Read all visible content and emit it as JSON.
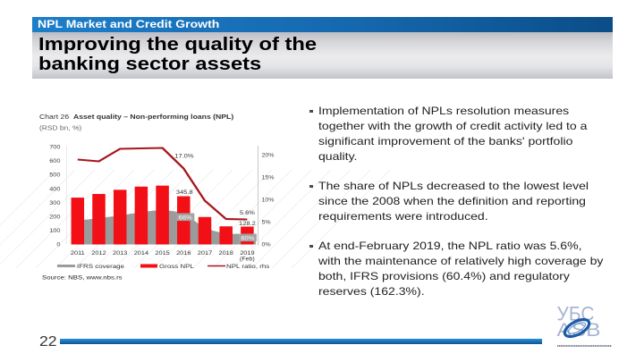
{
  "header": {
    "section_label": "NPL Market and Credit Growth",
    "title_line1": "Improving the quality of the",
    "title_line2": "banking sector assets"
  },
  "bullets": [
    {
      "lines": [
        "Implementation of NPLs resolution measures",
        "together with the growth of credit activity led to a",
        "significant improvement of the banks' portfolio",
        "quality."
      ]
    },
    {
      "lines": [
        "The share of NPLs decreased to the lowest level",
        "since the 2008 when the definition and reporting",
        "requirements were introduced."
      ]
    },
    {
      "lines": [
        "At end-February 2019, the NPL ratio was 5.6%,",
        "with the maintenance of relatively high coverage by",
        "both, IFRS provisions (60.4%) and regulatory",
        "reserves (162.3%)."
      ]
    }
  ],
  "footer": {
    "page_number": "22"
  },
  "logo": {
    "line1": "УБС",
    "line2": "АЅВ"
  },
  "colors": {
    "header_blue": "#1668ae",
    "gross_npl_red": "#f20f16",
    "npl_ratio_red": "#a8161e",
    "ifrs_gray": "#9b9b9b",
    "logo_letters": "#a7b4d2",
    "logo_ring": "#1a5ba6"
  },
  "chart_data": {
    "type": "bar",
    "title_label": "Chart 26",
    "title": "Asset quality – Non-performing loans (NPL)",
    "subtitle": "(RSD bn, %)",
    "categories": [
      "2011",
      "2012",
      "2013",
      "2014",
      "2015",
      "2016",
      "2017",
      "2018",
      "2019 (Feb)"
    ],
    "series": [
      {
        "name": "IFRS coverage",
        "type": "area",
        "unit": "%",
        "values": [
          51,
          52,
          53,
          56,
          59,
          66,
          58,
          58,
          60
        ]
      },
      {
        "name": "Gross NPL",
        "type": "bar",
        "unit": "RSD bn",
        "values": [
          336,
          362,
          392,
          415,
          422,
          345.8,
          197,
          130,
          128.2
        ]
      },
      {
        "name": "NPL ratio, rhs",
        "type": "line",
        "unit": "%",
        "axis": "right",
        "values": [
          19.0,
          18.6,
          21.4,
          21.5,
          21.6,
          17.0,
          9.8,
          5.7,
          5.6
        ]
      }
    ],
    "xlabel": "",
    "ylabel": "RSD bn",
    "ylim": [
      0,
      700
    ],
    "yticks": [
      0,
      100,
      200,
      300,
      400,
      500,
      600,
      700
    ],
    "y2label": "%",
    "y2lim": [
      0,
      22
    ],
    "y2ticks": [
      0,
      5,
      10,
      15,
      20
    ],
    "y2tick_suffix": "%",
    "annotations": [
      {
        "text": "17.0%",
        "series": 2,
        "index": 5,
        "offset": [
          0.6,
          -12
        ],
        "color": "#333"
      },
      {
        "text": "345.8",
        "series": 1,
        "index": 5,
        "offset": [
          1,
          -2.5
        ],
        "color": "#333"
      },
      {
        "text": "66%",
        "series": 0,
        "index": 5,
        "offset": [
          2,
          7.6
        ],
        "color": "#ffffff",
        "boxed": true
      },
      {
        "text": "5.6%",
        "series": 2,
        "index": 8,
        "offset": [
          0,
          -5.5
        ],
        "color": "#333"
      },
      {
        "text": "128.2",
        "series": 1,
        "index": 8,
        "offset": [
          0,
          -1.3
        ],
        "color": "#333"
      },
      {
        "text": "60%",
        "series": 0,
        "index": 8,
        "offset": [
          0.5,
          7
        ],
        "color": "#ffffff",
        "boxed": true
      }
    ],
    "legend": {
      "position": "bottom",
      "entries": [
        "IFRS coverage",
        "Gross NPL",
        "NPL ratio, rhs"
      ]
    },
    "grid": false,
    "source": "Source: NBS, www.nbs.rs"
  }
}
